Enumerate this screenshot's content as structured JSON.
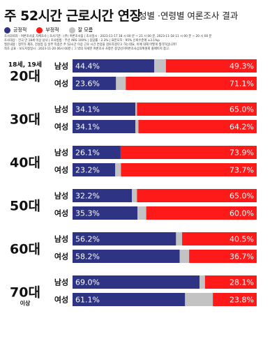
{
  "header": {
    "title": "주 52시간 근로시간 연장",
    "subtitle": "성별 ·연령별  여론조사 결과"
  },
  "legend": [
    {
      "label": "긍정적",
      "color": "#2e3384"
    },
    {
      "label": "부정적",
      "color": "#ff1a1a"
    },
    {
      "label": "잘 모름",
      "color": "#c3c3c3"
    }
  ],
  "survey_notes": [
    "조사의뢰자 : 여론조사꽃 자체조사 | 조사기관 : (주) 여론조사꽃 | 조사일시 : 2023-11-17  18 시 00 분 ~ 21 시 00 분, 2023-11-18  11 시 00 분 ~ 20 시 00 분",
    "조사대상 : 전국 만 18세 이상 남녀 | 조사방법 : 무선 ARS 100% | 응답률 : 2.3% | 표본오차 : 95% 신뢰수준에 ±3.1%p",
    "질문내용 : 정부가 제조, 건설업 등 일부 직종은 주 52시간 이상 근로 시간 연장을 검토하겠다고 하는데요, 이에 대해 어떻게 생각하십니까?",
    "최초 공표 · 보도지정일시 : 2023-11-20 06시 00분 | 그 밖의 자세한 여론조사 사항은 중앙선거여론조사심의위원회 홈페이지 참고."
  ],
  "chart_data": {
    "type": "bar",
    "orientation": "horizontal",
    "stacked": true,
    "percent_stacked": true,
    "series": [
      {
        "name": "긍정적",
        "color": "#2e3384"
      },
      {
        "name": "부정적",
        "color": "#ff1a1a"
      },
      {
        "name": "잘 모름",
        "color": "#c3c3c3"
      }
    ],
    "groups": [
      {
        "label": "20대",
        "prefix": "18세, 19세",
        "suffix": "",
        "rows": [
          {
            "gender": "남성",
            "positive": 44.4,
            "dontknow": 6.3,
            "negative": 49.3,
            "positive_label": "44.4%",
            "negative_label": "49.3%"
          },
          {
            "gender": "여성",
            "positive": 23.6,
            "dontknow": 5.3,
            "negative": 71.1,
            "positive_label": "23.6%",
            "negative_label": "71.1%"
          }
        ]
      },
      {
        "label": "30대",
        "prefix": "",
        "suffix": "",
        "rows": [
          {
            "gender": "남성",
            "positive": 34.1,
            "dontknow": 0.9,
            "negative": 65.0,
            "positive_label": "34.1%",
            "negative_label": "65.0%"
          },
          {
            "gender": "여성",
            "positive": 34.1,
            "dontknow": 1.7,
            "negative": 64.2,
            "positive_label": "34.1%",
            "negative_label": "64.2%"
          }
        ]
      },
      {
        "label": "40대",
        "prefix": "",
        "suffix": "",
        "rows": [
          {
            "gender": "남성",
            "positive": 26.1,
            "dontknow": 0.0,
            "negative": 73.9,
            "positive_label": "26.1%",
            "negative_label": "73.9%"
          },
          {
            "gender": "여성",
            "positive": 23.2,
            "dontknow": 3.1,
            "negative": 73.7,
            "positive_label": "23.2%",
            "negative_label": "73.7%"
          }
        ]
      },
      {
        "label": "50대",
        "prefix": "",
        "suffix": "",
        "rows": [
          {
            "gender": "남성",
            "positive": 32.2,
            "dontknow": 2.8,
            "negative": 65.0,
            "positive_label": "32.2%",
            "negative_label": "65.0%"
          },
          {
            "gender": "여성",
            "positive": 35.3,
            "dontknow": 4.7,
            "negative": 60.0,
            "positive_label": "35.3%",
            "negative_label": "60.0%"
          }
        ]
      },
      {
        "label": "60대",
        "prefix": "",
        "suffix": "",
        "rows": [
          {
            "gender": "남성",
            "positive": 56.2,
            "dontknow": 3.3,
            "negative": 40.5,
            "positive_label": "56.2%",
            "negative_label": "40.5%"
          },
          {
            "gender": "여성",
            "positive": 58.2,
            "dontknow": 5.1,
            "negative": 36.7,
            "positive_label": "58.2%",
            "negative_label": "36.7%"
          }
        ]
      },
      {
        "label": "70대",
        "prefix": "",
        "suffix": "이상",
        "rows": [
          {
            "gender": "남성",
            "positive": 69.0,
            "dontknow": 2.9,
            "negative": 28.1,
            "positive_label": "69.0%",
            "negative_label": "28.1%"
          },
          {
            "gender": "여성",
            "positive": 61.1,
            "dontknow": 15.1,
            "negative": 23.8,
            "positive_label": "61.1%",
            "negative_label": "23.8%"
          }
        ]
      }
    ],
    "xlim": [
      0,
      100
    ],
    "grid": false,
    "legend_position": "top-left"
  }
}
